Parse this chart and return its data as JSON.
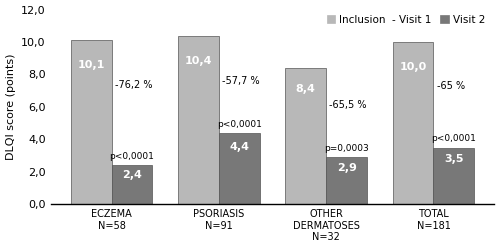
{
  "categories": [
    "ECZEMA\nN=58",
    "PSORIASIS\nN=91",
    "OTHER\nDERMATOSES\nN=32",
    "TOTAL\nN=181"
  ],
  "visit1_values": [
    10.1,
    10.4,
    8.4,
    10.0
  ],
  "visit2_values": [
    2.4,
    4.4,
    2.9,
    3.5
  ],
  "pct_changes": [
    "-76,2 %",
    "-57,7 %",
    "-65,5 %",
    "-65 %"
  ],
  "p_values": [
    "p<0,0001",
    "p<0,0001",
    "p=0,0003",
    "p<0,0001"
  ],
  "bar_color_v1": "#b8b8b8",
  "bar_color_v2": "#787878",
  "ylabel": "DLQI score (points)",
  "ylim": [
    0,
    12
  ],
  "yticks": [
    0.0,
    2.0,
    4.0,
    6.0,
    8.0,
    10.0,
    12.0
  ],
  "ytick_labels": [
    "0,0",
    "2,0",
    "4,0",
    "6,0",
    "8,0",
    "10,0",
    "12,0"
  ],
  "legend_v1": "Inclusion  - Visit 1",
  "legend_v2": "Visit 2",
  "bar_width": 0.38,
  "fig_width": 5.0,
  "fig_height": 2.48,
  "dpi": 100
}
